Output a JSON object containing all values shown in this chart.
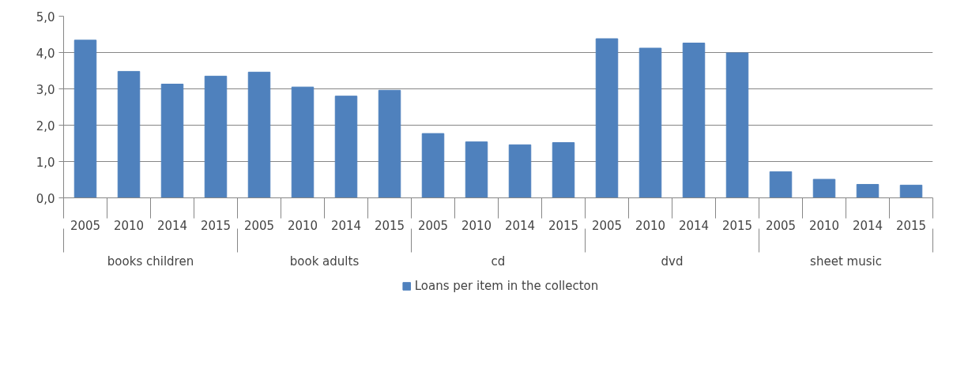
{
  "chart_data": {
    "type": "bar",
    "categories": [
      "2005",
      "2010",
      "2014",
      "2015",
      "2005",
      "2010",
      "2014",
      "2015",
      "2005",
      "2010",
      "2014",
      "2015",
      "2005",
      "2010",
      "2014",
      "2015",
      "2005",
      "2010",
      "2014",
      "2015"
    ],
    "annotations": [
      "books children",
      "book adults",
      "cd",
      "dvd",
      "sheet music"
    ],
    "series": [
      {
        "name": "Loans per item in the collecton",
        "color": "#4f81bd",
        "values": [
          4.34,
          3.48,
          3.13,
          3.35,
          3.46,
          3.05,
          2.8,
          2.96,
          1.77,
          1.54,
          1.46,
          1.52,
          4.38,
          4.12,
          4.26,
          3.99,
          0.72,
          0.51,
          0.37,
          0.35
        ]
      }
    ],
    "ylim": [
      0,
      5
    ],
    "yticks": [
      {
        "value": 0,
        "label": "0,0"
      },
      {
        "value": 1,
        "label": "1,0"
      },
      {
        "value": 2,
        "label": "2,0"
      },
      {
        "value": 3,
        "label": "3,0"
      },
      {
        "value": 4,
        "label": "4,0"
      },
      {
        "value": 5,
        "label": "5,0"
      }
    ],
    "grid": "y",
    "legend": "bottom"
  }
}
